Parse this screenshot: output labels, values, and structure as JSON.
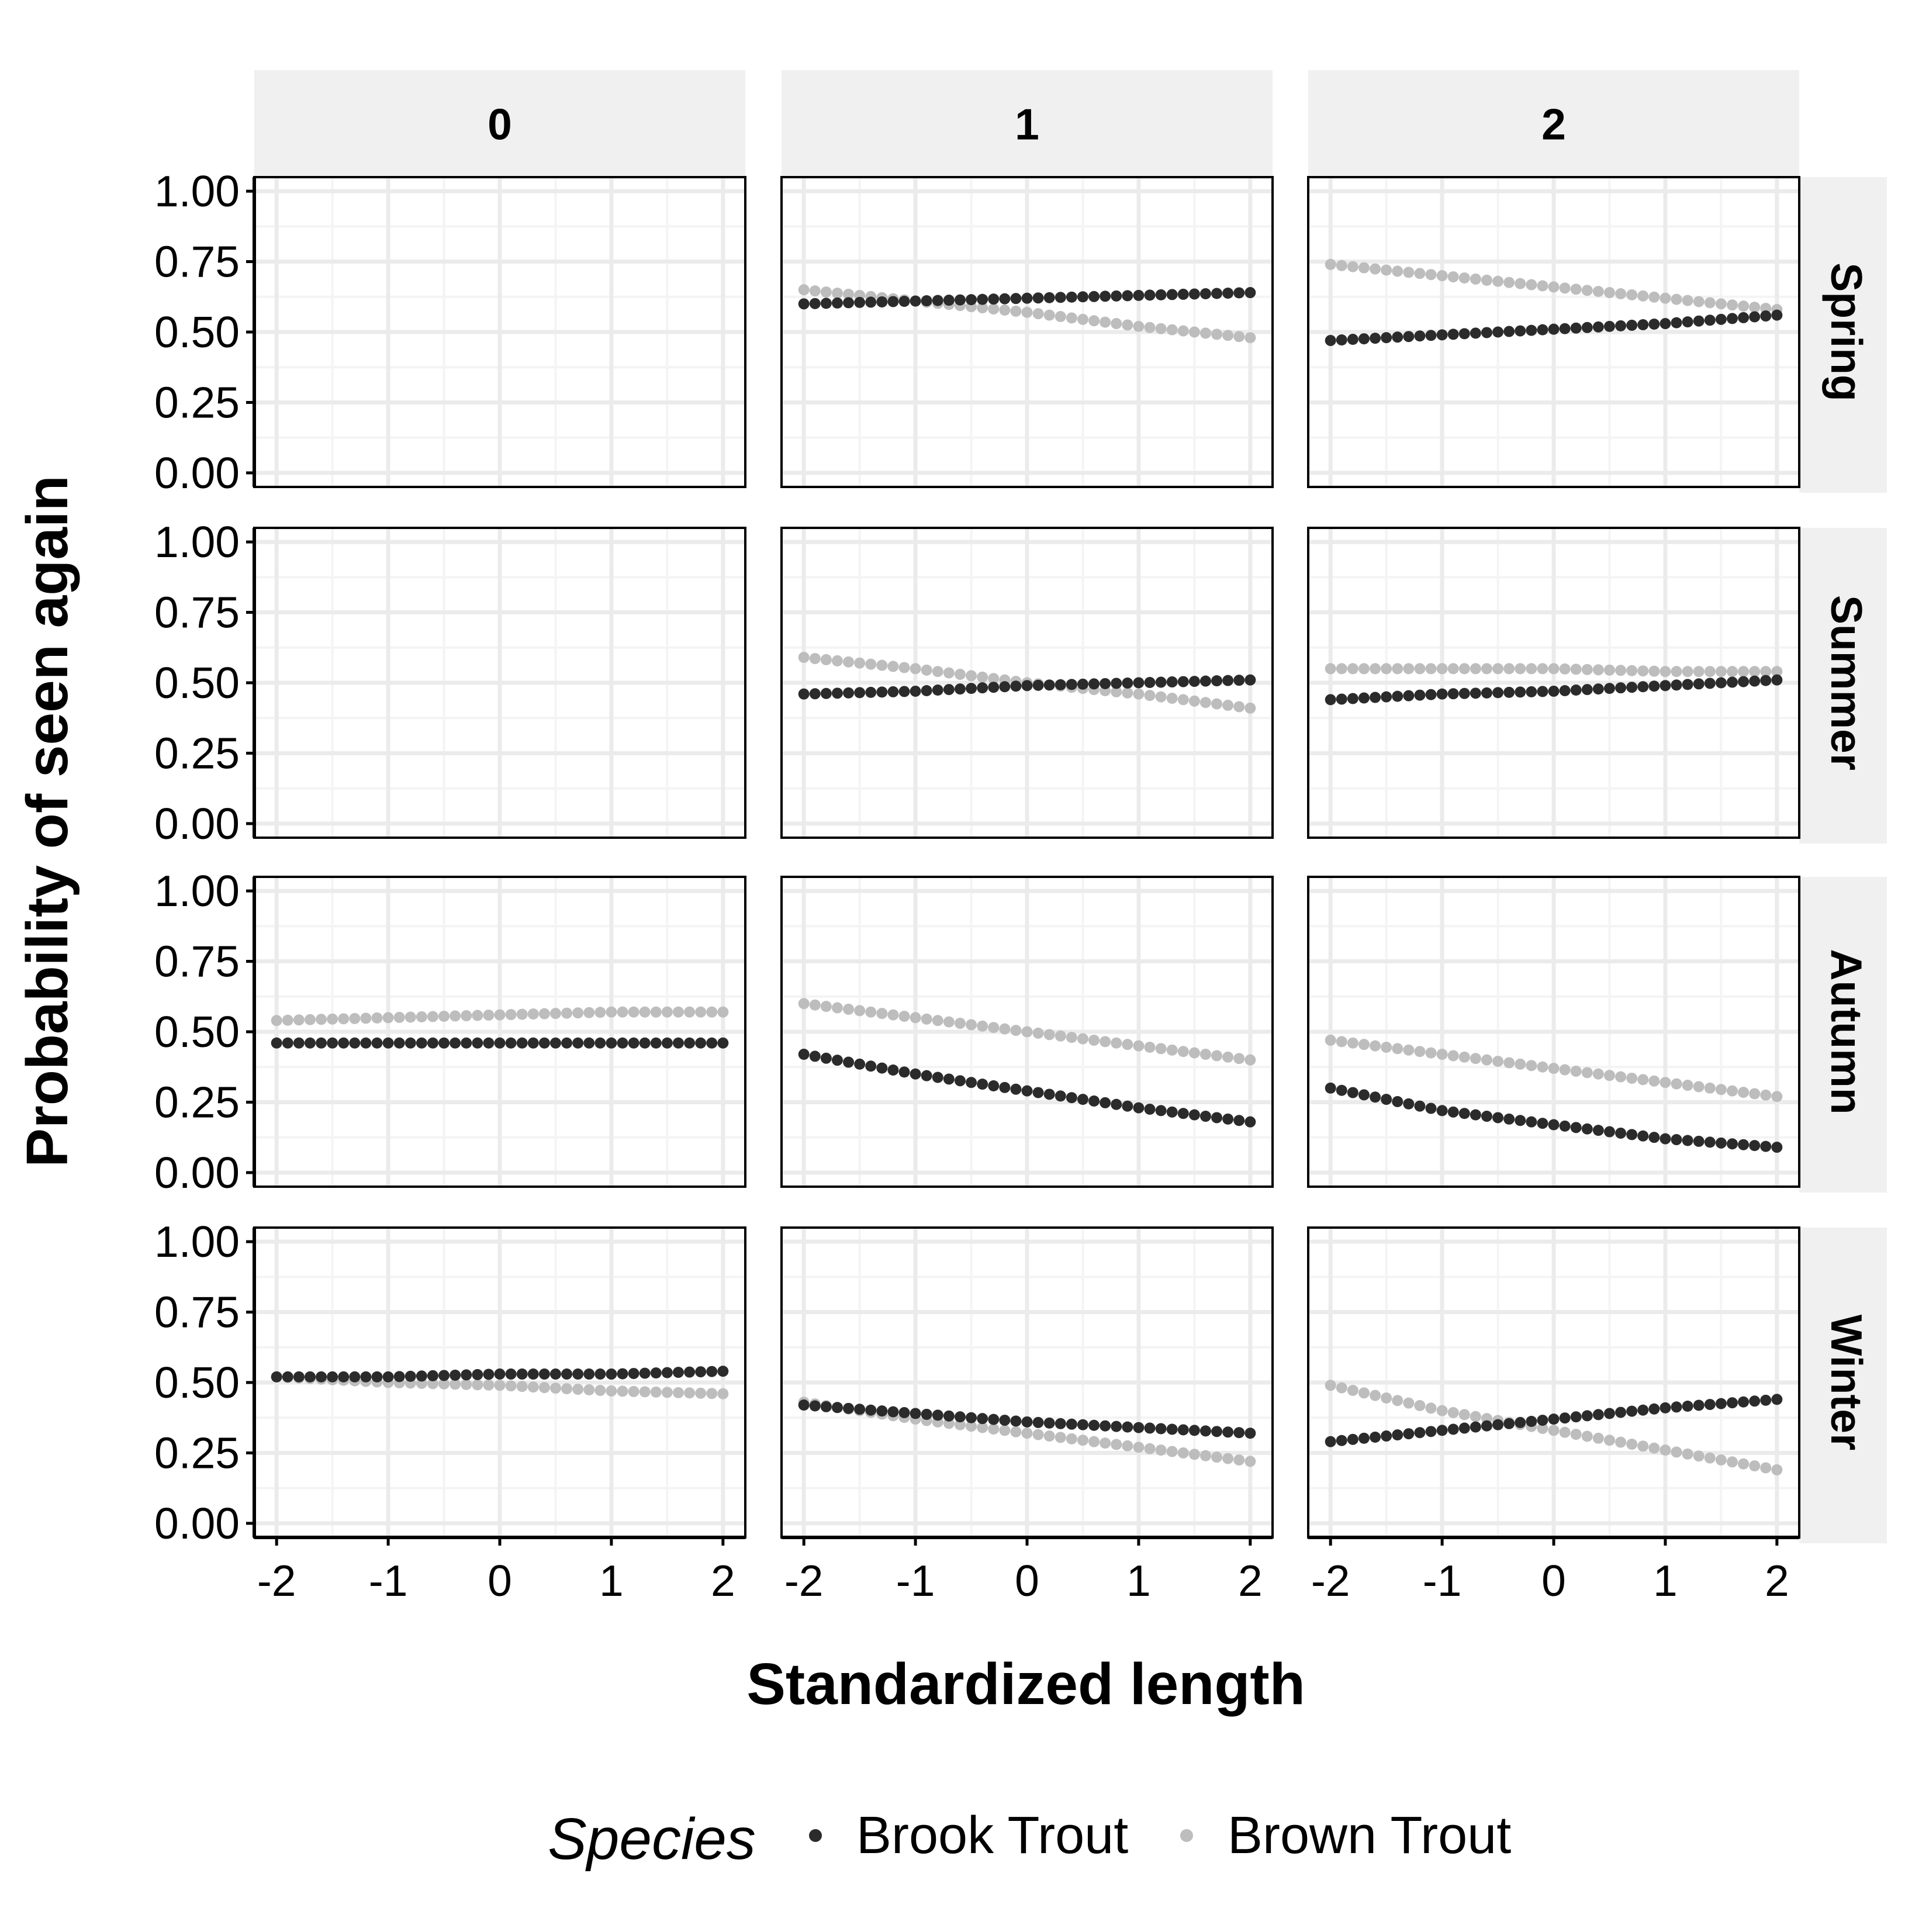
{
  "chart_data": {
    "type": "scatter",
    "description_free": true,
    "xlabel": "Standardized length",
    "ylabel": "Probability of seen again",
    "x_ticks": [
      "-2",
      "-1",
      "0",
      "1",
      "2"
    ],
    "y_ticks": [
      "0.00",
      "0.25",
      "0.50",
      "0.75",
      "1.00"
    ],
    "xlim": [
      -2.2,
      2.2
    ],
    "ylim": [
      -0.05,
      1.05
    ],
    "grid": true,
    "facet_cols": [
      "0",
      "1",
      "2"
    ],
    "facet_rows": [
      "Spring",
      "Summer",
      "Autumn",
      "Winter"
    ],
    "legend": {
      "title": "Species",
      "position": "bottom",
      "entries": [
        {
          "label": "Brook Trout",
          "color": "#2b2b2b"
        },
        {
          "label": "Brown Trout",
          "color": "#bdbdbd"
        }
      ]
    },
    "x": [
      -2.0,
      -1.0,
      0.0,
      1.0,
      2.0
    ],
    "panels": [
      {
        "row": "Spring",
        "col": "0",
        "series": []
      },
      {
        "row": "Spring",
        "col": "1",
        "series": [
          {
            "name": "Brook Trout",
            "values": [
              0.6,
              0.61,
              0.62,
              0.63,
              0.64
            ]
          },
          {
            "name": "Brown Trout",
            "values": [
              0.65,
              0.61,
              0.57,
              0.52,
              0.48
            ]
          }
        ]
      },
      {
        "row": "Spring",
        "col": "2",
        "series": [
          {
            "name": "Brook Trout",
            "values": [
              0.47,
              0.49,
              0.51,
              0.53,
              0.56
            ]
          },
          {
            "name": "Brown Trout",
            "values": [
              0.74,
              0.7,
              0.66,
              0.62,
              0.58
            ]
          }
        ]
      },
      {
        "row": "Summer",
        "col": "0",
        "series": []
      },
      {
        "row": "Summer",
        "col": "1",
        "series": [
          {
            "name": "Brook Trout",
            "values": [
              0.46,
              0.47,
              0.49,
              0.5,
              0.51
            ]
          },
          {
            "name": "Brown Trout",
            "values": [
              0.59,
              0.55,
              0.5,
              0.46,
              0.41
            ]
          }
        ]
      },
      {
        "row": "Summer",
        "col": "2",
        "series": [
          {
            "name": "Brook Trout",
            "values": [
              0.44,
              0.46,
              0.47,
              0.49,
              0.51
            ]
          },
          {
            "name": "Brown Trout",
            "values": [
              0.55,
              0.55,
              0.55,
              0.54,
              0.54
            ]
          }
        ]
      },
      {
        "row": "Autumn",
        "col": "0",
        "series": [
          {
            "name": "Brook Trout",
            "values": [
              0.46,
              0.46,
              0.46,
              0.46,
              0.46
            ]
          },
          {
            "name": "Brown Trout",
            "values": [
              0.54,
              0.55,
              0.56,
              0.57,
              0.57
            ]
          }
        ]
      },
      {
        "row": "Autumn",
        "col": "1",
        "series": [
          {
            "name": "Brook Trout",
            "values": [
              0.42,
              0.35,
              0.29,
              0.23,
              0.18
            ]
          },
          {
            "name": "Brown Trout",
            "values": [
              0.6,
              0.55,
              0.5,
              0.45,
              0.4
            ]
          }
        ]
      },
      {
        "row": "Autumn",
        "col": "2",
        "series": [
          {
            "name": "Brook Trout",
            "values": [
              0.3,
              0.22,
              0.17,
              0.12,
              0.09
            ]
          },
          {
            "name": "Brown Trout",
            "values": [
              0.47,
              0.42,
              0.37,
              0.32,
              0.27
            ]
          }
        ]
      },
      {
        "row": "Winter",
        "col": "0",
        "series": [
          {
            "name": "Brook Trout",
            "values": [
              0.52,
              0.52,
              0.53,
              0.53,
              0.54
            ]
          },
          {
            "name": "Brown Trout",
            "values": [
              0.52,
              0.5,
              0.49,
              0.47,
              0.46
            ]
          }
        ]
      },
      {
        "row": "Winter",
        "col": "1",
        "series": [
          {
            "name": "Brook Trout",
            "values": [
              0.42,
              0.39,
              0.36,
              0.34,
              0.32
            ]
          },
          {
            "name": "Brown Trout",
            "values": [
              0.43,
              0.37,
              0.32,
              0.27,
              0.22
            ]
          }
        ]
      },
      {
        "row": "Winter",
        "col": "2",
        "series": [
          {
            "name": "Brook Trout",
            "values": [
              0.29,
              0.33,
              0.37,
              0.41,
              0.44
            ]
          },
          {
            "name": "Brown Trout",
            "values": [
              0.49,
              0.4,
              0.33,
              0.26,
              0.19
            ]
          }
        ]
      }
    ]
  }
}
